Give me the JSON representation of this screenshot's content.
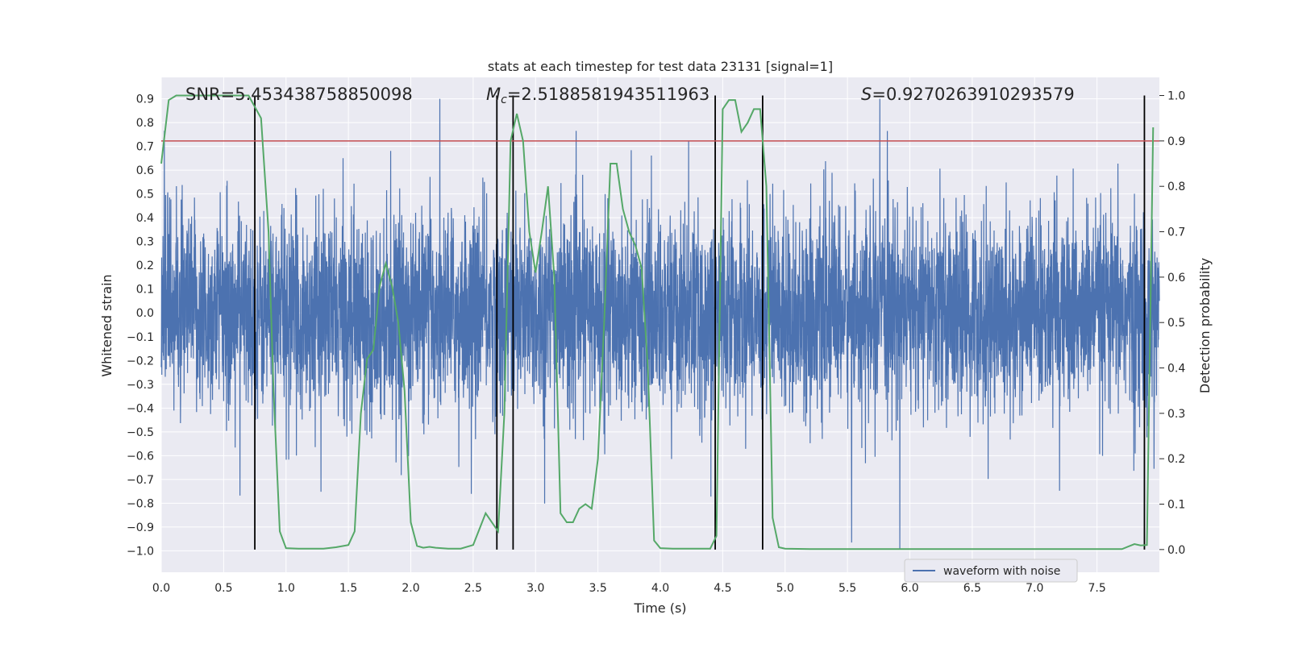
{
  "chart_data": {
    "type": "line",
    "title": "stats at each timestep for test data 23131 [signal=1]",
    "xlabel": "Time (s)",
    "ylabel": "Whitened strain",
    "y2label": "Detection probability",
    "xlim": [
      0.0,
      8.0
    ],
    "ylim": [
      -1.09,
      0.99
    ],
    "y2lim": [
      -0.05,
      1.04
    ],
    "x_ticks": [
      0.0,
      0.5,
      1.0,
      1.5,
      2.0,
      2.5,
      3.0,
      3.5,
      4.0,
      4.5,
      5.0,
      5.5,
      6.0,
      6.5,
      7.0,
      7.5
    ],
    "x_tick_labels": [
      "0.0",
      "0.5",
      "1.0",
      "1.5",
      "2.0",
      "2.5",
      "3.0",
      "3.5",
      "4.0",
      "4.5",
      "5.0",
      "5.5",
      "6.0",
      "6.5",
      "7.0",
      "7.5"
    ],
    "y_ticks": [
      0.9,
      0.8,
      0.7,
      0.6,
      0.5,
      0.4,
      0.3,
      0.2,
      0.1,
      0.0,
      -0.1,
      -0.2,
      -0.3,
      -0.4,
      -0.5,
      -0.6,
      -0.7,
      -0.8,
      -0.9,
      -1.0
    ],
    "y_tick_labels": [
      "0.9",
      "0.8",
      "0.7",
      "0.6",
      "0.5",
      "0.4",
      "0.3",
      "0.2",
      "0.1",
      "0.0",
      "−0.1",
      "−0.2",
      "−0.3",
      "−0.4",
      "−0.5",
      "−0.6",
      "−0.7",
      "−0.8",
      "−0.9",
      "−1.0"
    ],
    "y2_ticks": [
      1.0,
      0.9,
      0.8,
      0.7,
      0.6,
      0.5,
      0.4,
      0.3,
      0.2,
      0.1,
      0.0
    ],
    "y2_tick_labels": [
      "1.0",
      "0.9",
      "0.8",
      "0.7",
      "0.6",
      "0.5",
      "0.4",
      "0.3",
      "0.2",
      "0.1",
      "0.0"
    ],
    "grid": true,
    "legend": {
      "placement": "lower-right",
      "entries": [
        "waveform with noise"
      ]
    },
    "annotations": {
      "snr": "SNR=5.453438758850098",
      "mc_symbol": "M",
      "mc_sub": "c",
      "mc_value": "=2.5188581943511963",
      "s_symbol": "S",
      "s_value": "=0.9270263910293579"
    },
    "threshold": {
      "axis": "y2",
      "value": 0.9,
      "color": "#c44e52"
    },
    "vlines_x": [
      0.75,
      2.69,
      2.82,
      4.44,
      4.82,
      7.88
    ],
    "colors": {
      "waveform": "#4c72b0",
      "probability": "#55a868",
      "threshold": "#c44e52",
      "vline": "#000000",
      "axes_bg": "#eaeaf2",
      "grid": "#ffffff"
    },
    "series": [
      {
        "name": "waveform with noise",
        "axis": "y",
        "kind": "dense-noise",
        "values_note_range": [
          -1.0,
          0.9
        ]
      },
      {
        "axis": "y2",
        "x": [
          0.0,
          0.06,
          0.12,
          0.2,
          0.3,
          0.4,
          0.5,
          0.6,
          0.7,
          0.74,
          0.8,
          0.86,
          0.9,
          0.95,
          1.0,
          1.1,
          1.2,
          1.3,
          1.4,
          1.5,
          1.55,
          1.6,
          1.65,
          1.7,
          1.75,
          1.8,
          1.85,
          1.9,
          1.95,
          2.0,
          2.05,
          2.1,
          2.15,
          2.2,
          2.3,
          2.4,
          2.5,
          2.6,
          2.65,
          2.7,
          2.75,
          2.8,
          2.85,
          2.9,
          2.95,
          3.0,
          3.05,
          3.1,
          3.15,
          3.2,
          3.25,
          3.3,
          3.35,
          3.4,
          3.45,
          3.5,
          3.55,
          3.6,
          3.65,
          3.7,
          3.75,
          3.8,
          3.85,
          3.9,
          3.95,
          4.0,
          4.1,
          4.2,
          4.3,
          4.4,
          4.45,
          4.5,
          4.55,
          4.6,
          4.65,
          4.7,
          4.75,
          4.8,
          4.85,
          4.9,
          4.95,
          5.0,
          5.2,
          5.5,
          6.0,
          6.5,
          7.0,
          7.5,
          7.6,
          7.7,
          7.8,
          7.85,
          7.9,
          7.95
        ],
        "values": [
          0.85,
          0.99,
          1.0,
          1.0,
          1.0,
          1.0,
          1.0,
          1.0,
          1.0,
          0.98,
          0.95,
          0.7,
          0.35,
          0.04,
          0.003,
          0.002,
          0.002,
          0.002,
          0.005,
          0.01,
          0.04,
          0.3,
          0.42,
          0.44,
          0.58,
          0.63,
          0.58,
          0.5,
          0.35,
          0.06,
          0.008,
          0.004,
          0.006,
          0.004,
          0.002,
          0.002,
          0.01,
          0.08,
          0.06,
          0.04,
          0.3,
          0.9,
          0.96,
          0.9,
          0.7,
          0.61,
          0.7,
          0.8,
          0.6,
          0.08,
          0.06,
          0.06,
          0.09,
          0.1,
          0.09,
          0.2,
          0.5,
          0.85,
          0.85,
          0.75,
          0.7,
          0.67,
          0.62,
          0.4,
          0.02,
          0.003,
          0.002,
          0.002,
          0.002,
          0.002,
          0.03,
          0.97,
          0.99,
          0.99,
          0.92,
          0.94,
          0.97,
          0.97,
          0.8,
          0.07,
          0.005,
          0.002,
          0.001,
          0.001,
          0.001,
          0.001,
          0.001,
          0.001,
          0.001,
          0.001,
          0.012,
          0.009,
          0.01,
          0.93
        ]
      }
    ]
  }
}
